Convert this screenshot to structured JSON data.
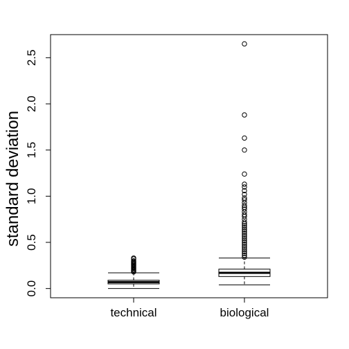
{
  "chart_data": {
    "type": "box",
    "ylabel": "standard deviation",
    "xlabel": "",
    "ylim": [
      -0.1,
      2.75
    ],
    "yticks": [
      0.0,
      0.5,
      1.0,
      1.5,
      2.0,
      2.5
    ],
    "ytick_labels": [
      "0.0",
      "0.5",
      "1.0",
      "1.5",
      "2.0",
      "2.5"
    ],
    "categories": [
      "technical",
      "biological"
    ],
    "boxes": [
      {
        "name": "technical",
        "whisker_low": 0.0,
        "q1": 0.05,
        "median": 0.07,
        "q3": 0.09,
        "whisker_high": 0.17,
        "outliers": [
          0.18,
          0.19,
          0.2,
          0.21,
          0.22,
          0.23,
          0.24,
          0.25,
          0.26,
          0.27,
          0.28,
          0.29,
          0.3,
          0.32,
          0.33
        ]
      },
      {
        "name": "biological",
        "whisker_low": 0.04,
        "q1": 0.13,
        "median": 0.17,
        "q3": 0.21,
        "whisker_high": 0.33,
        "outliers": [
          0.34,
          0.36,
          0.38,
          0.4,
          0.42,
          0.44,
          0.46,
          0.48,
          0.5,
          0.52,
          0.54,
          0.56,
          0.58,
          0.6,
          0.62,
          0.64,
          0.66,
          0.68,
          0.7,
          0.72,
          0.75,
          0.78,
          0.8,
          0.83,
          0.86,
          0.88,
          0.9,
          0.93,
          0.96,
          0.98,
          1.02,
          1.06,
          1.1,
          1.13,
          1.24,
          1.5,
          1.63,
          1.88,
          2.65
        ]
      }
    ]
  }
}
